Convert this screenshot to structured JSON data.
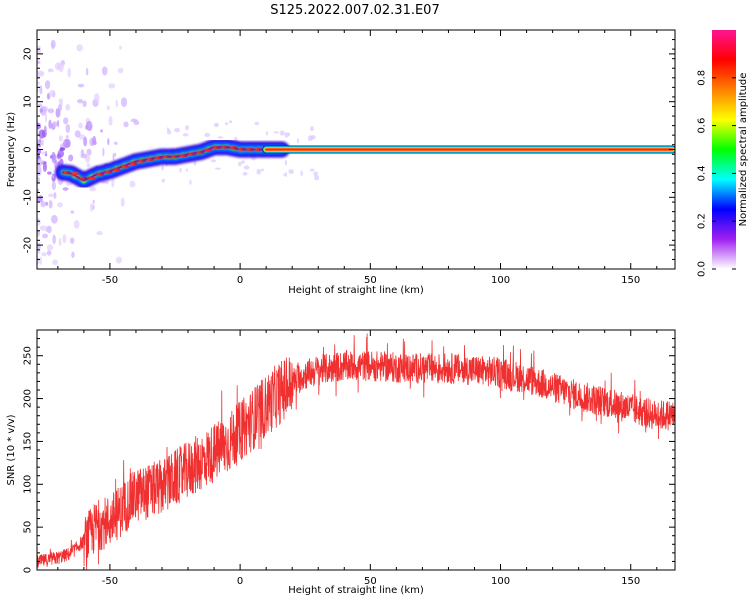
{
  "title": "S125.2022.007.02.31.E07",
  "colors": {
    "snr_line": "#f03030",
    "axes": "#000000",
    "background": "#ffffff"
  },
  "chart_data": [
    {
      "type": "heatmap",
      "name": "spectrogram",
      "xlabel": "Height of straight line (km)",
      "ylabel": "Frequency (Hz)",
      "xlim": [
        -78,
        167
      ],
      "ylim": [
        -25,
        25
      ],
      "xticks": [
        -50,
        0,
        50,
        100,
        150
      ],
      "yticks": [
        -20,
        -10,
        0,
        10,
        20
      ],
      "grid": false,
      "ridge": {
        "x": [
          -68,
          -65,
          -60,
          -55,
          -50,
          -45,
          -40,
          -35,
          -30,
          -25,
          -20,
          -15,
          -10,
          -5,
          0,
          5,
          10,
          20,
          40,
          60,
          80,
          100,
          120,
          140,
          166
        ],
        "y": [
          -4.8,
          -5,
          -6.5,
          -5.2,
          -4.5,
          -3.5,
          -2.5,
          -2,
          -1.5,
          -1.5,
          -1,
          -0.5,
          0.5,
          0.5,
          0,
          0,
          0,
          0,
          0,
          0,
          0,
          0,
          0,
          0,
          0
        ]
      }
    },
    {
      "type": "colorbar",
      "label": "Normalized spectral amplitude",
      "range": [
        0,
        1
      ],
      "ticks": [
        0.0,
        0.2,
        0.4,
        0.6,
        0.8
      ],
      "tick_labels": [
        "0.0",
        "0.2",
        "0.4",
        "0.6",
        "0.8"
      ],
      "colormap": [
        "#ffffff",
        "#a020f0",
        "#0000ff",
        "#00ffff",
        "#00ff00",
        "#ffff00",
        "#ff8000",
        "#ff0000",
        "#ff1493"
      ]
    },
    {
      "type": "line",
      "name": "snr",
      "xlabel": "Height of straight line (km)",
      "ylabel": "SNR (10 * v/v)",
      "xlim": [
        -78,
        167
      ],
      "ylim": [
        0,
        280
      ],
      "xticks": [
        -50,
        0,
        50,
        100,
        150
      ],
      "yticks": [
        0,
        50,
        100,
        150,
        200,
        250
      ],
      "grid": false,
      "envelope": {
        "x": [
          -78,
          -70,
          -65,
          -60,
          -55,
          -50,
          -45,
          -40,
          -35,
          -30,
          -25,
          -20,
          -15,
          -10,
          -5,
          0,
          5,
          10,
          15,
          20,
          25,
          30,
          40,
          50,
          60,
          70,
          80,
          90,
          100,
          110,
          120,
          130,
          140,
          150,
          160,
          167
        ],
        "y": [
          10,
          15,
          20,
          35,
          55,
          60,
          75,
          90,
          95,
          100,
          110,
          120,
          130,
          140,
          150,
          165,
          180,
          195,
          210,
          220,
          230,
          235,
          240,
          240,
          238,
          237,
          237,
          235,
          232,
          225,
          215,
          205,
          198,
          190,
          182,
          183
        ]
      }
    }
  ]
}
